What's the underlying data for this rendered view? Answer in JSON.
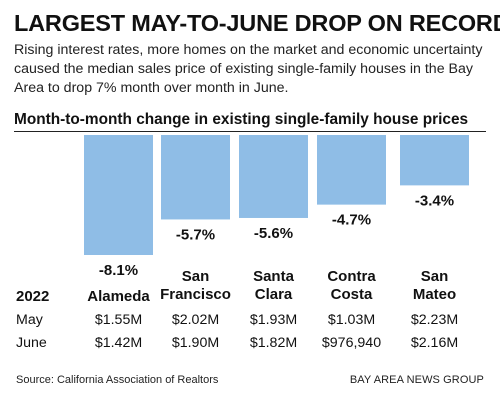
{
  "headline": "LARGEST MAY-TO-JUNE DROP ON RECORD",
  "subtitle": "Rising interest rates, more homes on the market and economic uncertainty caused the median sales price of existing single-family houses in the Bay Area to drop 7% month over month in June.",
  "source": "Source: California Association of Realtors",
  "credit": "BAY AREA NEWS GROUP",
  "colors": {
    "bar": "#8fbde6",
    "text": "#111111"
  },
  "chart_data": {
    "type": "bar",
    "title": "Month-to-month change in existing single-family house prices",
    "unit": "%",
    "categories": [
      [
        "Alameda"
      ],
      [
        "San",
        "Francisco"
      ],
      [
        "Santa",
        "Clara"
      ],
      [
        "Contra",
        "Costa"
      ],
      [
        "San",
        "Mateo"
      ]
    ],
    "values": [
      -8.1,
      -5.7,
      -5.6,
      -4.7,
      -3.4
    ],
    "value_labels": [
      "-8.1%",
      "-5.7%",
      "-5.6%",
      "-4.7%",
      "-3.4%"
    ],
    "ylim": [
      -8.1,
      0
    ]
  },
  "table": {
    "year_label": "2022",
    "rows": [
      {
        "label": "May",
        "values": [
          "$1.55M",
          "$2.02M",
          "$1.93M",
          "$1.03M",
          "$2.23M"
        ]
      },
      {
        "label": "June",
        "values": [
          "$1.42M",
          "$1.90M",
          "$1.82M",
          "$976,940",
          "$2.16M"
        ]
      }
    ]
  }
}
